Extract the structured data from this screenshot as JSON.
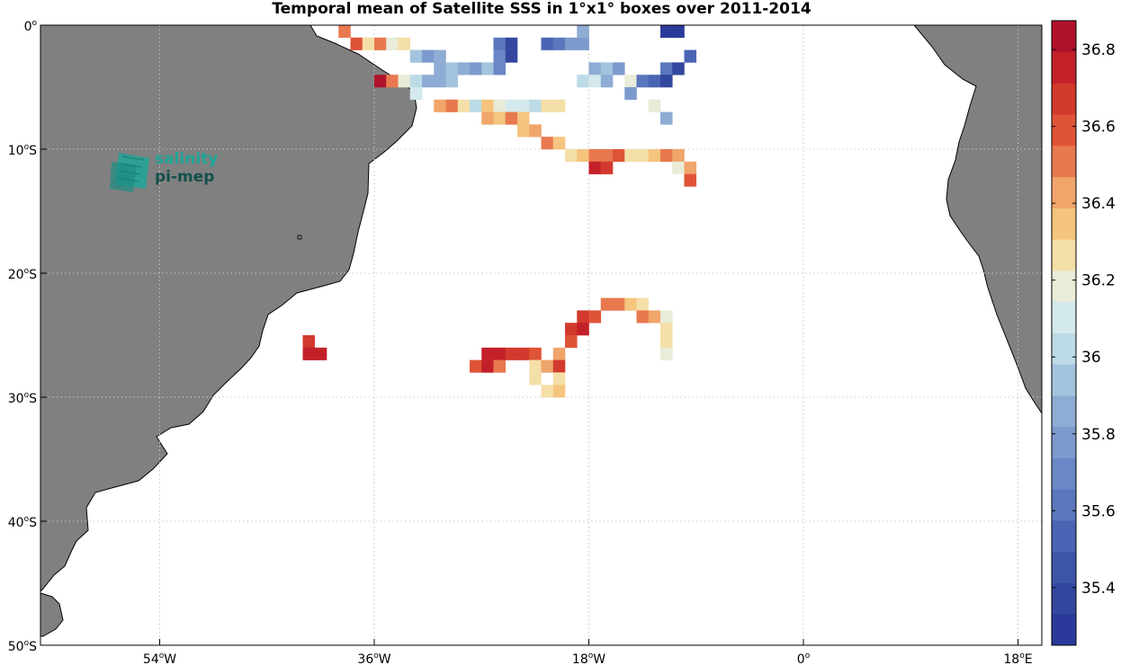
{
  "title": "Temporal mean of Satellite SSS in 1°x1° boxes over 2011-2014",
  "logo": {
    "line1": "salinity",
    "line2": "pi-mep"
  },
  "map": {
    "lon_range": [
      -64,
      20
    ],
    "lat_range": [
      -50,
      0
    ],
    "xticks": [
      {
        "value": -54,
        "num": "54",
        "deg": "o",
        "hem": "W"
      },
      {
        "value": -36,
        "num": "36",
        "deg": "o",
        "hem": "W"
      },
      {
        "value": -18,
        "num": "18",
        "deg": "o",
        "hem": "W"
      },
      {
        "value": 0,
        "num": "0",
        "deg": "o",
        "hem": ""
      },
      {
        "value": 18,
        "num": "18",
        "deg": "o",
        "hem": "E"
      }
    ],
    "yticks": [
      {
        "value": 0,
        "num": "0",
        "deg": "o",
        "hem": ""
      },
      {
        "value": -10,
        "num": "10",
        "deg": "o",
        "hem": "S"
      },
      {
        "value": -20,
        "num": "20",
        "deg": "o",
        "hem": "S"
      },
      {
        "value": -30,
        "num": "30",
        "deg": "o",
        "hem": "S"
      },
      {
        "value": -40,
        "num": "40",
        "deg": "o",
        "hem": "S"
      },
      {
        "value": -50,
        "num": "50",
        "deg": "o",
        "hem": "S"
      }
    ],
    "land_color": "#808080",
    "grid": "dotted"
  },
  "colorbar": {
    "min": 35.25,
    "max": 36.875,
    "ticks": [
      "35.4",
      "35.6",
      "35.8",
      "36",
      "36.2",
      "36.4",
      "36.6",
      "36.8"
    ],
    "colors": [
      "#2b3a9a",
      "#34479f",
      "#3d55a8",
      "#4a65b3",
      "#5a77bd",
      "#6b88c6",
      "#7c9acd",
      "#8eacd4",
      "#a3c4de",
      "#bcdbe6",
      "#d4e9eb",
      "#e8ecd8",
      "#f5dfa8",
      "#f5c47e",
      "#f0a56a",
      "#e8794f",
      "#df5437",
      "#d23a2e",
      "#c32129",
      "#b0122b"
    ]
  },
  "chart_data": {
    "type": "heatmap",
    "title": "Temporal mean of Satellite SSS in 1°x1° boxes over 2011-2014",
    "xlabel": "",
    "ylabel": "",
    "xlim": [
      -64,
      20
    ],
    "ylim": [
      -50,
      0
    ],
    "zlim": [
      35.25,
      36.875
    ],
    "units": "",
    "cells": [
      [
        -39,
        0,
        36.55
      ],
      [
        -38,
        -1,
        36.6
      ],
      [
        -37,
        -1,
        36.3
      ],
      [
        -36,
        -1,
        36.55
      ],
      [
        -35,
        -1,
        36.2
      ],
      [
        -34,
        -1,
        36.25
      ],
      [
        -33,
        -2,
        35.95
      ],
      [
        -32,
        -2,
        35.75
      ],
      [
        -31,
        -2,
        35.85
      ],
      [
        -31,
        -3,
        35.9
      ],
      [
        -30,
        -3,
        35.95
      ],
      [
        -29,
        -3,
        35.9
      ],
      [
        -28,
        -3,
        35.75
      ],
      [
        -27,
        -3,
        35.95
      ],
      [
        -26,
        -3,
        35.7
      ],
      [
        -36,
        -4,
        36.8
      ],
      [
        -35,
        -4,
        36.5
      ],
      [
        -34,
        -4,
        36.2
      ],
      [
        -33,
        -4,
        36.0
      ],
      [
        -32,
        -4,
        35.85
      ],
      [
        -31,
        -4,
        35.9
      ],
      [
        -30,
        -4,
        35.95
      ],
      [
        -33,
        -5,
        36.1
      ],
      [
        -31,
        -6,
        36.4
      ],
      [
        -30,
        -6,
        36.5
      ],
      [
        -29,
        -6,
        36.3
      ],
      [
        -28,
        -6,
        36.05
      ],
      [
        -27,
        -6,
        36.35
      ],
      [
        -26,
        -6,
        36.2
      ],
      [
        -25,
        -6,
        36.1
      ],
      [
        -24,
        -6,
        36.1
      ],
      [
        -23,
        -6,
        36.0
      ],
      [
        -22,
        -6,
        36.25
      ],
      [
        -21,
        -6,
        36.3
      ],
      [
        -27,
        -7,
        36.4
      ],
      [
        -26,
        -7,
        36.35
      ],
      [
        -25,
        -7,
        36.5
      ],
      [
        -24,
        -7,
        36.35
      ],
      [
        -24,
        -8,
        36.35
      ],
      [
        -23,
        -8,
        36.4
      ],
      [
        -22,
        -9,
        36.5
      ],
      [
        -21,
        -9,
        36.35
      ],
      [
        -26,
        -1,
        35.6
      ],
      [
        -25,
        -1,
        35.4
      ],
      [
        -26,
        -2,
        35.7
      ],
      [
        -25,
        -2,
        35.35
      ],
      [
        -22,
        -1,
        35.55
      ],
      [
        -21,
        -1,
        35.65
      ],
      [
        -20,
        -1,
        35.75
      ],
      [
        -19,
        -1,
        35.75
      ],
      [
        -19,
        0,
        35.85
      ],
      [
        -12,
        0,
        35.3
      ],
      [
        -11,
        0,
        35.3
      ],
      [
        -18,
        -3,
        35.9
      ],
      [
        -17,
        -3,
        35.95
      ],
      [
        -16,
        -3,
        35.75
      ],
      [
        -12,
        -3,
        35.65
      ],
      [
        -11,
        -3,
        35.35
      ],
      [
        -19,
        -4,
        36.05
      ],
      [
        -18,
        -4,
        36.1
      ],
      [
        -17,
        -4,
        35.9
      ],
      [
        -15,
        -4,
        36.2
      ],
      [
        -14,
        -4,
        35.65
      ],
      [
        -13,
        -4,
        35.5
      ],
      [
        -12,
        -4,
        35.4
      ],
      [
        -15,
        -5,
        35.75
      ],
      [
        -13,
        -6,
        36.2
      ],
      [
        -12,
        -7,
        35.9
      ],
      [
        -10,
        -2,
        35.5
      ],
      [
        -20,
        -10,
        36.25
      ],
      [
        -19,
        -10,
        36.35
      ],
      [
        -18,
        -10,
        36.55
      ],
      [
        -17,
        -10,
        36.5
      ],
      [
        -16,
        -10,
        36.6
      ],
      [
        -15,
        -10,
        36.3
      ],
      [
        -14,
        -10,
        36.25
      ],
      [
        -13,
        -10,
        36.35
      ],
      [
        -12,
        -10,
        36.5
      ],
      [
        -11,
        -10,
        36.4
      ],
      [
        -18,
        -11,
        36.75
      ],
      [
        -17,
        -11,
        36.65
      ],
      [
        -11,
        -11,
        36.2
      ],
      [
        -10,
        -11,
        36.45
      ],
      [
        -10,
        -12,
        36.6
      ],
      [
        -17,
        -22,
        36.5
      ],
      [
        -16,
        -22,
        36.55
      ],
      [
        -15,
        -22,
        36.35
      ],
      [
        -14,
        -22,
        36.25
      ],
      [
        -19,
        -23,
        36.7
      ],
      [
        -18,
        -23,
        36.6
      ],
      [
        -14,
        -23,
        36.5
      ],
      [
        -13,
        -23,
        36.45
      ],
      [
        -12,
        -23,
        36.2
      ],
      [
        -20,
        -24,
        36.7
      ],
      [
        -19,
        -24,
        36.75
      ],
      [
        -12,
        -24,
        36.25
      ],
      [
        -20,
        -25,
        36.6
      ],
      [
        -12,
        -25,
        36.3
      ],
      [
        -42,
        -25,
        36.65
      ],
      [
        -42,
        -26,
        36.75
      ],
      [
        -41,
        -26,
        36.75
      ],
      [
        -27,
        -26,
        36.75
      ],
      [
        -26,
        -26,
        36.75
      ],
      [
        -25,
        -26,
        36.65
      ],
      [
        -24,
        -26,
        36.65
      ],
      [
        -23,
        -26,
        36.6
      ],
      [
        -21,
        -26,
        36.4
      ],
      [
        -12,
        -26,
        36.2
      ],
      [
        -28,
        -27,
        36.6
      ],
      [
        -27,
        -27,
        36.75
      ],
      [
        -26,
        -27,
        36.55
      ],
      [
        -23,
        -27,
        36.25
      ],
      [
        -22,
        -27,
        36.4
      ],
      [
        -21,
        -27,
        36.7
      ],
      [
        -23,
        -28,
        36.3
      ],
      [
        -21,
        -28,
        36.25
      ],
      [
        -22,
        -29,
        36.3
      ],
      [
        -21,
        -29,
        36.35
      ]
    ]
  }
}
